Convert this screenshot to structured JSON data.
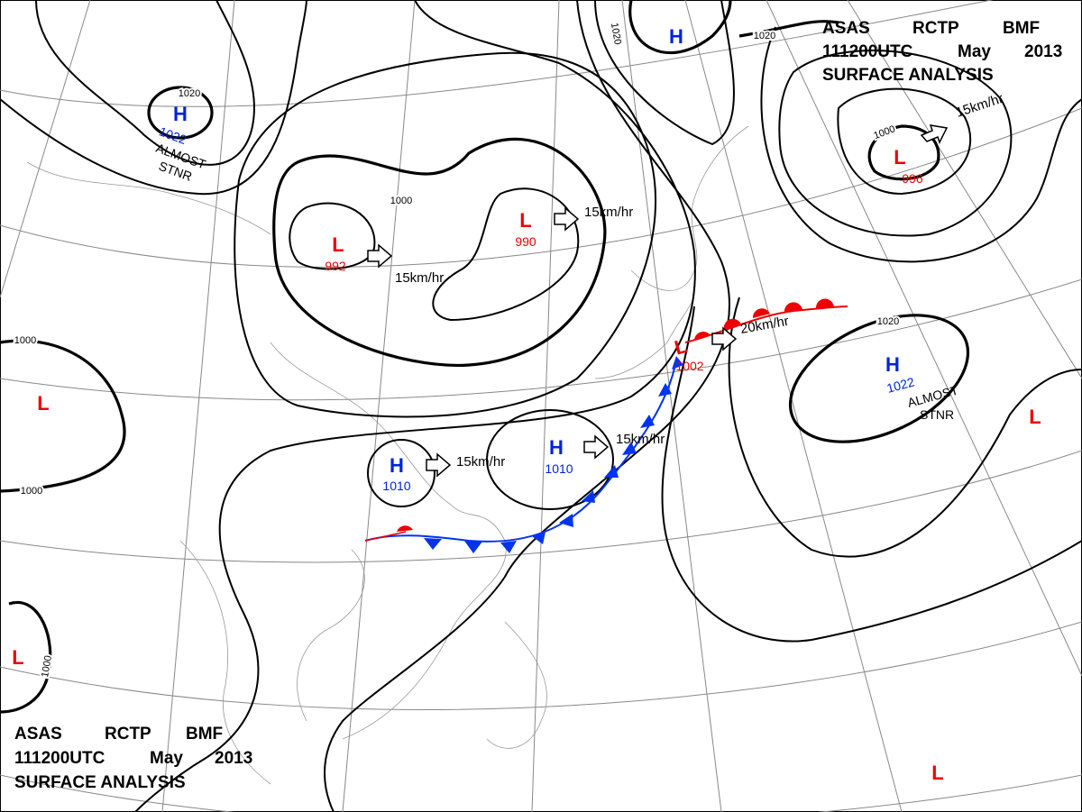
{
  "title_block": {
    "words": [
      "ASAS",
      "RCTP",
      "BMF",
      "111200UTC",
      "May",
      "2013"
    ],
    "subtitle": "SURFACE ANALYSIS"
  },
  "systems": [
    {
      "symbol": "H",
      "pressure": "1022",
      "status": [
        "ALMOST",
        "STNR"
      ]
    },
    {
      "symbol": "L",
      "pressure": "992",
      "motion": "15km/hr"
    },
    {
      "symbol": "L",
      "pressure": "990",
      "motion": "15km/hr"
    },
    {
      "symbol": "L",
      "pressure": "996",
      "motion": "15km/hr"
    },
    {
      "symbol": "L",
      "pressure": "1002",
      "motion": "20km/hr"
    },
    {
      "symbol": "H",
      "pressure": "1022",
      "status": [
        "ALMOST",
        "STNR"
      ]
    },
    {
      "symbol": "H",
      "pressure": "1010",
      "motion": "15km/hr"
    },
    {
      "symbol": "H",
      "pressure": "1010",
      "motion": "15km/hr"
    },
    {
      "symbol": "H"
    },
    {
      "symbol": "L"
    },
    {
      "symbol": "L"
    },
    {
      "symbol": "L"
    },
    {
      "symbol": "L"
    }
  ],
  "isobar_labels": [
    "1020",
    "1020",
    "1020",
    "1020",
    "1000",
    "1000",
    "1000",
    "1000",
    "1000"
  ]
}
